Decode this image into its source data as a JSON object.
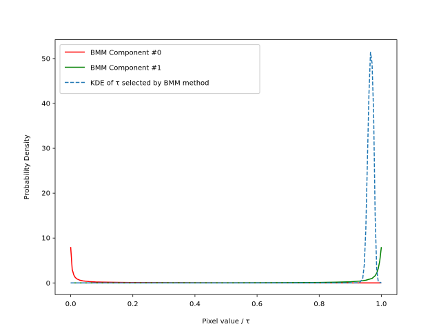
{
  "chart_data": {
    "type": "line",
    "title": "",
    "xlabel": "Pixel value / τ",
    "ylabel": "Probability Density",
    "xlim": [
      -0.05,
      1.05
    ],
    "ylim": [
      -2.6,
      54.2
    ],
    "x_ticks": [
      0.0,
      0.2,
      0.4,
      0.6,
      0.8,
      1.0
    ],
    "x_tick_labels": [
      "0.0",
      "0.2",
      "0.4",
      "0.6",
      "0.8",
      "1.0"
    ],
    "y_ticks": [
      0,
      10,
      20,
      30,
      40,
      50
    ],
    "y_tick_labels": [
      "0",
      "10",
      "20",
      "30",
      "40",
      "50"
    ],
    "grid": false,
    "legend_position": "top-left",
    "series": [
      {
        "name": "BMM Component #0",
        "color": "#ff0000",
        "style": "solid",
        "x": [
          0.0,
          0.005,
          0.01,
          0.015,
          0.02,
          0.03,
          0.04,
          0.06,
          0.08,
          0.1,
          0.15,
          0.2,
          0.3,
          0.4,
          0.5,
          0.6,
          0.7,
          0.8,
          0.9,
          0.95,
          0.99,
          1.0
        ],
        "y": [
          8.0,
          3.0,
          1.8,
          1.2,
          0.9,
          0.6,
          0.45,
          0.3,
          0.22,
          0.18,
          0.12,
          0.09,
          0.06,
          0.04,
          0.03,
          0.02,
          0.015,
          0.01,
          0.005,
          0.003,
          0.001,
          0.0
        ]
      },
      {
        "name": "BMM Component #1",
        "color": "#008000",
        "style": "solid",
        "x": [
          0.0,
          0.1,
          0.2,
          0.3,
          0.4,
          0.5,
          0.6,
          0.7,
          0.8,
          0.85,
          0.9,
          0.93,
          0.95,
          0.97,
          0.98,
          0.985,
          0.99,
          0.995,
          1.0
        ],
        "y": [
          0.0,
          0.005,
          0.01,
          0.015,
          0.02,
          0.03,
          0.04,
          0.06,
          0.1,
          0.15,
          0.25,
          0.4,
          0.6,
          1.0,
          1.6,
          2.2,
          3.2,
          5.0,
          8.0
        ]
      },
      {
        "name": "KDE of τ selected by BMM method",
        "color": "#1f77b4",
        "style": "dashed",
        "x": [
          0.0,
          0.2,
          0.4,
          0.6,
          0.8,
          0.9,
          0.93,
          0.94,
          0.945,
          0.95,
          0.955,
          0.96,
          0.965,
          0.97,
          0.975,
          0.98,
          0.985,
          0.99,
          1.0
        ],
        "y": [
          0.0,
          0.0,
          0.0,
          0.0,
          0.0,
          0.0,
          0.05,
          1.0,
          4.0,
          12.0,
          27.0,
          42.0,
          51.4,
          49.0,
          38.0,
          15.0,
          3.0,
          0.3,
          0.0
        ]
      }
    ]
  }
}
